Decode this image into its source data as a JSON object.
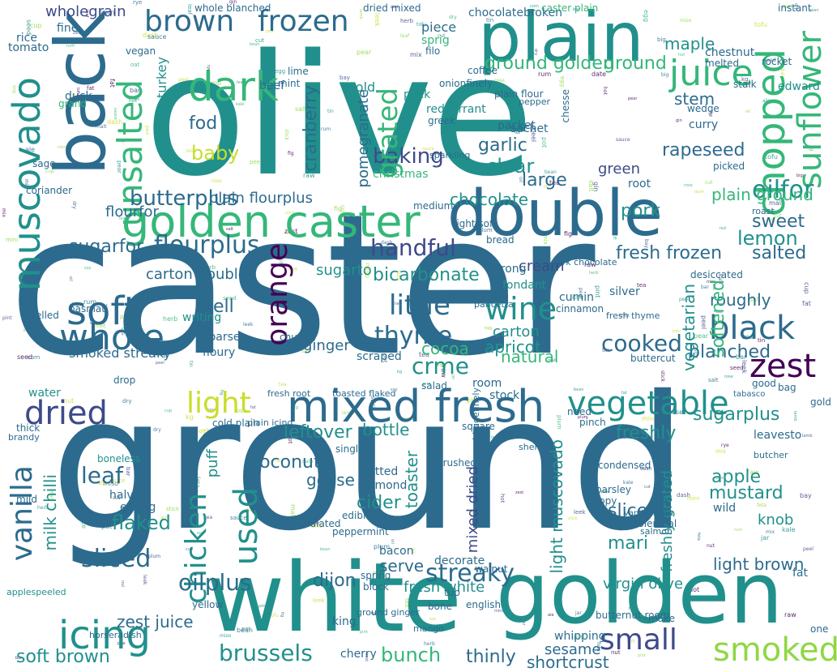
{
  "words": {
    "caster": "caster",
    "ground": "ground",
    "olive": "olive",
    "white": "white",
    "golden": "golden",
    "plain": "plain",
    "double": "double",
    "golden_caster": "golden caster",
    "mixed_fresh": "mixed fresh",
    "brown": "brown",
    "frozen": "frozen",
    "dark": "dark",
    "juice": "juice",
    "chopped": "chopped",
    "sunflower": "sunflower",
    "unsalted": "unsalted",
    "muscovado": "muscovado",
    "back": "back",
    "soft": "soft",
    "whole": "whole",
    "dried": "dried",
    "vegetable": "vegetable",
    "light": "light",
    "black": "black",
    "zest": "zest",
    "icing": "icing",
    "small": "small",
    "smoked": "smoked",
    "wine": "wine",
    "orange": "orange",
    "lemon": "lemon",
    "oilfor": "oilfor",
    "flourplus": "flourplus",
    "handful": "handful",
    "bicarbonate": "bicarbonate",
    "vanilla": "vanilla",
    "chicken": "chicken",
    "used": "used",
    "sliced": "sliced",
    "brussels": "brussels",
    "oilplus": "oilplus",
    "streaky": "streaky",
    "bunch": "bunch",
    "thinly": "thinly",
    "sesame": "sesame",
    "shortcrust": "shortcrust",
    "cooked": "cooked",
    "blanched": "blanched",
    "thyme": "thyme",
    "little": "little",
    "baking": "baking",
    "garlic": "garlic",
    "clear": "clear",
    "grated": "grated",
    "fod": "fod",
    "baby": "baby",
    "butterplus": "butterplus",
    "pork": "pork",
    "rapeseed": "rapeseed",
    "green": "green",
    "chocolate": "chocolate",
    "large": "large",
    "sugarfor": "sugarfor",
    "plain_ground": "plain ground",
    "sweet": "sweet",
    "salted": "salted",
    "fresh_frozen": "fresh frozen",
    "ground_golden": "ground golden",
    "cranberry": "cranberry",
    "pomegranate": "pomegranate",
    "stem": "stem",
    "maple": "maple",
    "wholegrain": "wholegrain",
    "ginger": "ginger",
    "cocoa": "cocoa",
    "crme": "crme",
    "apricot": "apricot",
    "natural": "natural",
    "carton": "carton",
    "roughly": "roughly",
    "softened": "softened",
    "vegetarian": "vegetarian",
    "apple": "apple",
    "mustard": "mustard",
    "sugarplus": "sugarplus",
    "leftover": "leftover",
    "bottle": "bottle",
    "freshly": "freshly",
    "coconut": "coconut",
    "leaf": "leaf",
    "flaked": "flaked",
    "milk_chilli": "milk chilli",
    "toaster": "toaster",
    "mixed_dried": "mixed dried",
    "cider": "cider",
    "light_brown": "light brown",
    "light_muscovado": "light muscovado",
    "slice": "slice",
    "knob": "knob",
    "dijon": "dijon",
    "serve": "serve",
    "goose": "goose",
    "virgin_olive": "virgin olive",
    "fresh_white": "fresh white",
    "soft_brown": "soft brown",
    "zest_juice": "zest juice",
    "smoked_streaky": "smoked streaky",
    "well": "well",
    "puff": "puff",
    "sugarto": "sugarto",
    "mari": "mari",
    "freshly_grated": "freshly grated",
    "carton_double": "carton double",
    "flourfor": "flourfor",
    "plain_flourplus": "plain flourplus",
    "creamy": "cream",
    "diced": "diced",
    "tomato": "tomato",
    "rice": "rice",
    "duck": "duck",
    "turkey": "turkey",
    "grand": "grand",
    "sprig": "sprig",
    "piece": "piece",
    "chestnut": "chestnut",
    "melted": "melted",
    "christmas": "christmas",
    "cold": "cold",
    "pack": "pack",
    "sachet": "sachet",
    "fine": "fine",
    "coriander": "coriander",
    "basmati": "basmati",
    "fondant": "fondant",
    "shelled": "shelled",
    "vanilla_bean": "vanilla bean",
    "chilli": "chilli",
    "edward": "edward",
    "curry": "curry",
    "root": "root",
    "dark_chocolate": "dark chocolate",
    "fresh_thyme": "fresh thyme",
    "scraped": "scraped",
    "buttercut": "buttercut",
    "floury": "floury",
    "coarse": "coarse",
    "writing": "writing",
    "drop": "drop",
    "water": "water",
    "cold_plain": "cold plain",
    "thick": "thick",
    "boneless": "boneless",
    "halved": "halved",
    "eating": "eating",
    "pitted": "pitted",
    "almond": "almond",
    "edible": "edible",
    "crushed": "crushed",
    "bacon": "bacon",
    "spring": "spring",
    "block": "block",
    "decorate": "decorate",
    "walnut": "walnut",
    "king": "king",
    "cherry": "cherry",
    "english": "english",
    "whipping": "whipping",
    "buttercream": "butternut room",
    "make": "make",
    "one": "one",
    "fresh_root": "fresh root",
    "toasted_flaked": "toasted flaked",
    "salad": "salad",
    "stock": "stock",
    "need": "need",
    "pinch": "pinch",
    "square": "square",
    "tamed": "tabasco",
    "poppy": "poppy",
    "condensed": "condensed",
    "parsley": "parsley",
    "peppermint": "peppermint",
    "granulated": "granulated",
    "leaves": "leavesto",
    "wild": "wild",
    "silver": "silver",
    "cumin": "cumin",
    "single": "single",
    "mince": "mini",
    "fat": "fat",
    "bag": "bag",
    "gold": "gold",
    "good": "good",
    "instant": "instant",
    "whole_blanched": "whole blanched",
    "dried_mixed": "dried mixed",
    "caster_plain": "caster plain",
    "ground_ginger": "ground ginger",
    "plain_flour": "plain flour",
    "light_soft": "light soft",
    "hot": "hot",
    "brandy": "brandy",
    "sage": "sage",
    "strong": "strong",
    "medium": "medium",
    "redcurrant": "redcurrant",
    "onionfinely": "onionfinely",
    "cabbage": "cabbagefinely",
    "packet": "packet",
    "chocolatebroken": "chocolatebroken",
    "sparkling": "sparkling",
    "beef": "beef",
    "mint": "mint",
    "lime": "lime",
    "vegan": "vegan",
    "coffee": "coffee",
    "greek": "greek",
    "stalk": "stalk",
    "wedge": "wedge",
    "rocket": "rocket",
    "red": "red",
    "cinnamon": "cinnamon",
    "desiccated": "desiccated",
    "salmon": "salmon",
    "pepper": "pepper",
    "bread": "bread",
    "room": "room",
    "tub": "tub",
    "bone": "bone",
    "butcher": "butcher",
    "sherry": "sherry",
    "milk": "milk",
    "yellow": "yellow",
    "cheese": "chesse",
    "picked": "picked",
    "roast": "roast",
    "wholemeal": "wholemeal",
    "mild": "mild",
    "chunky": "chunky",
    "plain_icing": "plain icing",
    "whisky": "whisky",
    "spelt": "spelt",
    "potatoes": "potatoespeeled",
    "applespeeled": "applespeeled",
    "cavolo": "cavolo",
    "filo": "filo",
    "sultana": "sultana",
    "pancetta": "pancetta",
    "grating": "grating",
    "horseradish": "horseradish",
    "mango": "mango",
    "truffle": "truffle",
    "pizza": "pizza"
  },
  "scatter": [
    "kg",
    "mix",
    "sauce",
    "stick",
    "dash",
    "pint",
    "jar",
    "tin",
    "egg",
    "oat",
    "nut",
    "zest",
    "cut",
    "peel",
    "hot",
    "raw",
    "dry",
    "big",
    "mini",
    "fat",
    "pot",
    "bar",
    "cup",
    "seed",
    "leaf",
    "fig",
    "rye",
    "pea",
    "bay",
    "oil",
    "rum",
    "gin",
    "ale",
    "tea",
    "kale",
    "leek",
    "pear",
    "plum",
    "date",
    "lamb",
    "feta",
    "tofu",
    "corn",
    "bean",
    "rose",
    "herb",
    "malt",
    "soy",
    "miso",
    "salt"
  ]
}
